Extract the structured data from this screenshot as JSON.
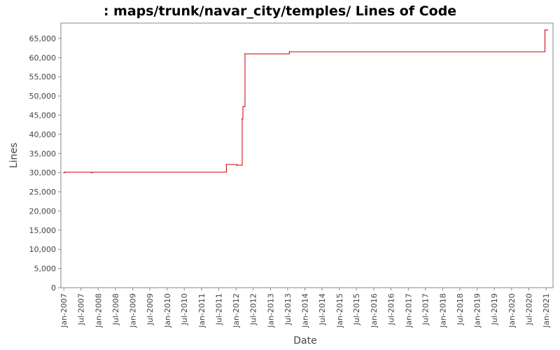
{
  "chart_data": {
    "type": "line",
    "title": ": maps/trunk/navar_city/temples/ Lines of Code",
    "xlabel": "Date",
    "ylabel": "Lines",
    "xlim": [
      "2006-12-01",
      "2021-03-15"
    ],
    "ylim": [
      0,
      69000
    ],
    "grid": false,
    "legend": "none",
    "colors": {
      "series": "#cc0000",
      "axis": "#888888",
      "text": "#444444"
    },
    "y_ticks": [
      {
        "value": 0,
        "label": "0"
      },
      {
        "value": 5000,
        "label": "5,000"
      },
      {
        "value": 10000,
        "label": "10,000"
      },
      {
        "value": 15000,
        "label": "15,000"
      },
      {
        "value": 20000,
        "label": "20,000"
      },
      {
        "value": 25000,
        "label": "25,000"
      },
      {
        "value": 30000,
        "label": "30,000"
      },
      {
        "value": 35000,
        "label": "35,000"
      },
      {
        "value": 40000,
        "label": "40,000"
      },
      {
        "value": 45000,
        "label": "45,000"
      },
      {
        "value": 50000,
        "label": "50,000"
      },
      {
        "value": 55000,
        "label": "55,000"
      },
      {
        "value": 60000,
        "label": "60,000"
      },
      {
        "value": 65000,
        "label": "65,000"
      }
    ],
    "x_ticks": [
      {
        "date": "2007-01-01",
        "label": "Jan-2007"
      },
      {
        "date": "2007-07-01",
        "label": "Jul-2007"
      },
      {
        "date": "2008-01-01",
        "label": "Jan-2008"
      },
      {
        "date": "2008-07-01",
        "label": "Jul-2008"
      },
      {
        "date": "2009-01-01",
        "label": "Jan-2009"
      },
      {
        "date": "2009-07-01",
        "label": "Jul-2009"
      },
      {
        "date": "2010-01-01",
        "label": "Jan-2010"
      },
      {
        "date": "2010-07-01",
        "label": "Jul-2010"
      },
      {
        "date": "2011-01-01",
        "label": "Jan-2011"
      },
      {
        "date": "2011-07-01",
        "label": "Jul-2011"
      },
      {
        "date": "2012-01-01",
        "label": "Jan-2012"
      },
      {
        "date": "2012-07-01",
        "label": "Jul-2012"
      },
      {
        "date": "2013-01-01",
        "label": "Jan-2013"
      },
      {
        "date": "2013-07-01",
        "label": "Jul-2013"
      },
      {
        "date": "2014-01-01",
        "label": "Jan-2014"
      },
      {
        "date": "2014-07-01",
        "label": "Jul-2014"
      },
      {
        "date": "2015-01-01",
        "label": "Jan-2015"
      },
      {
        "date": "2015-07-01",
        "label": "Jul-2015"
      },
      {
        "date": "2016-01-01",
        "label": "Jan-2016"
      },
      {
        "date": "2016-07-01",
        "label": "Jul-2016"
      },
      {
        "date": "2017-01-01",
        "label": "Jan-2017"
      },
      {
        "date": "2017-07-01",
        "label": "Jul-2017"
      },
      {
        "date": "2018-01-01",
        "label": "Jan-2018"
      },
      {
        "date": "2018-07-01",
        "label": "Jul-2018"
      },
      {
        "date": "2019-01-01",
        "label": "Jan-2019"
      },
      {
        "date": "2019-07-01",
        "label": "Jul-2019"
      },
      {
        "date": "2020-01-01",
        "label": "Jan-2020"
      },
      {
        "date": "2020-07-01",
        "label": "Jul-2020"
      },
      {
        "date": "2021-01-01",
        "label": "Jan-2021"
      }
    ],
    "series": [
      {
        "step": true,
        "points": [
          [
            "2007-01-01",
            30000
          ],
          [
            "2007-01-10",
            30100
          ],
          [
            "2007-10-20",
            30000
          ],
          [
            "2007-11-01",
            30100
          ],
          [
            "2011-09-20",
            32100
          ],
          [
            "2012-01-10",
            31900
          ],
          [
            "2012-03-05",
            44000
          ],
          [
            "2012-03-15",
            47200
          ],
          [
            "2012-04-05",
            61000
          ],
          [
            "2013-07-20",
            61500
          ],
          [
            "2020-12-20",
            67200
          ],
          [
            "2021-01-15",
            67200
          ]
        ]
      }
    ]
  }
}
